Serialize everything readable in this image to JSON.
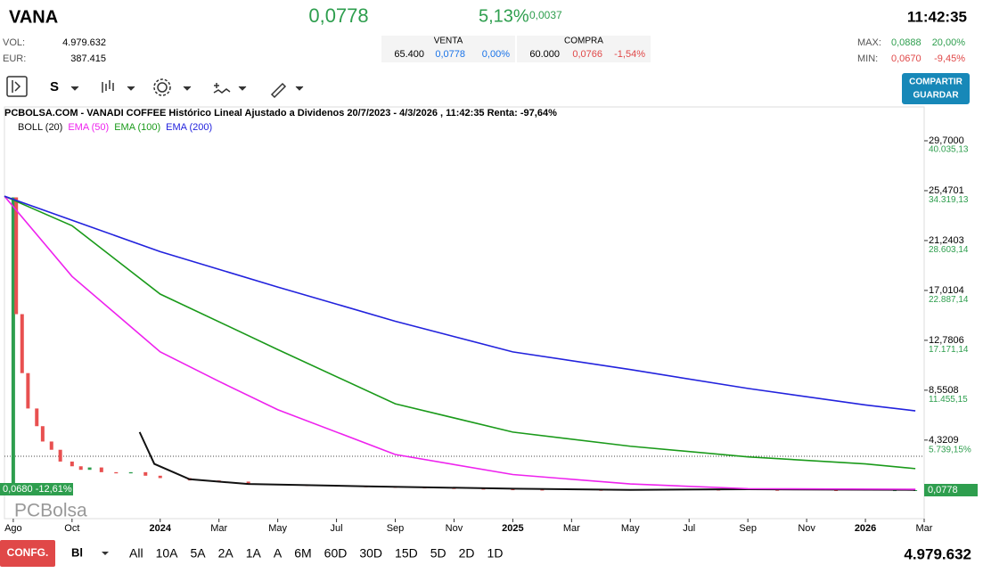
{
  "header": {
    "ticker": "VANA",
    "price": "0,0778",
    "change_pct": "5,13%",
    "change": "0,0037",
    "time": "11:42:35"
  },
  "stats": {
    "vol_label": "VOL:",
    "vol": "4.979.632",
    "eur_label": "EUR:",
    "eur": "387.415",
    "max_label": "MAX:",
    "max": "0,0888",
    "max_pct": "20,00%",
    "min_label": "MIN:",
    "min": "0,0670",
    "min_pct": "-9,45%"
  },
  "book": {
    "venta": {
      "label": "VENTA",
      "qty": "65.400",
      "price": "0,0778",
      "pct": "0,00%"
    },
    "compra": {
      "label": "COMPRA",
      "qty": "60.000",
      "price": "0,0766",
      "pct": "-1,54%"
    }
  },
  "toolbar": {
    "period": "S",
    "share": "COMPARTIR",
    "save": "GUARDAR"
  },
  "chart_data": {
    "type": "line",
    "title": "PCBOLSA.COM - VANADI COFFEE Histórico Lineal Ajustado a Dividenos 20/7/2023 - 4/3/2026 , 11:42:35 Renta: -97,64%",
    "watermark": "PCBolsa",
    "last_label": "0,0778",
    "low_label": "0,0680 -12,61%",
    "xlim": [
      -0.3,
      31
    ],
    "ylim": [
      -2.34,
      32.57
    ],
    "y2lim": [
      -3254,
      43804
    ],
    "xticks": [
      {
        "value": 0,
        "label": "Ago"
      },
      {
        "value": 2,
        "label": "Oct"
      },
      {
        "value": 5,
        "label": "2024"
      },
      {
        "value": 7,
        "label": "Mar"
      },
      {
        "value": 9,
        "label": "May"
      },
      {
        "value": 11,
        "label": "Jul"
      },
      {
        "value": 13,
        "label": "Sep"
      },
      {
        "value": 15,
        "label": "Nov"
      },
      {
        "value": 17,
        "label": "2025"
      },
      {
        "value": 19,
        "label": "Mar"
      },
      {
        "value": 21,
        "label": "May"
      },
      {
        "value": 23,
        "label": "Jul"
      },
      {
        "value": 25,
        "label": "Sep"
      },
      {
        "value": 27,
        "label": "Nov"
      },
      {
        "value": 29,
        "label": "2026"
      },
      {
        "value": 31,
        "label": "Mar"
      }
    ],
    "yticks": [
      {
        "value": 29.7,
        "label": "29,7000"
      },
      {
        "value": 25.4701,
        "label": "25,4701"
      },
      {
        "value": 21.2403,
        "label": "21,2403"
      },
      {
        "value": 17.0104,
        "label": "17,0104"
      },
      {
        "value": 12.7806,
        "label": "12,7806"
      },
      {
        "value": 8.5508,
        "label": "8,5508"
      },
      {
        "value": 4.3209,
        "label": "4,3209"
      }
    ],
    "y2ticks": [
      {
        "value": 40035.13,
        "label": "40.035,13"
      },
      {
        "value": 34319.13,
        "label": "34.319,13"
      },
      {
        "value": 28603.14,
        "label": "28.603,14"
      },
      {
        "value": 22887.14,
        "label": "22.887,14"
      },
      {
        "value": 17171.14,
        "label": "17.171,14"
      },
      {
        "value": 11455.15,
        "label": "11.455,15"
      },
      {
        "value": 5739.15,
        "label": "5.739,15%"
      }
    ],
    "series": [
      {
        "name": "BOLL (20)",
        "color": "#111111",
        "x": [
          4.3,
          4.8,
          6,
          8,
          12,
          17,
          21,
          25,
          30.7
        ],
        "values": [
          5.0,
          2.3,
          1.0,
          0.6,
          0.4,
          0.2,
          0.1,
          0.15,
          0.1
        ]
      },
      {
        "name": "EMA (50)",
        "color": "#ee22ee",
        "x": [
          -0.3,
          2,
          5,
          7,
          9,
          13,
          17,
          21,
          25,
          30.7
        ],
        "values": [
          25.0,
          18.2,
          11.8,
          9.3,
          6.9,
          3.1,
          1.4,
          0.6,
          0.2,
          0.15
        ]
      },
      {
        "name": "EMA (100)",
        "color": "#1a9a1a",
        "x": [
          -0.3,
          2,
          5,
          9,
          13,
          17,
          21,
          25,
          29,
          30.7
        ],
        "values": [
          25.0,
          22.5,
          16.7,
          12.0,
          7.4,
          5.0,
          3.8,
          2.9,
          2.3,
          1.9
        ]
      },
      {
        "name": "EMA (200)",
        "color": "#2222dd",
        "x": [
          -0.3,
          5,
          9,
          13,
          17,
          21,
          25,
          29,
          30.7
        ],
        "values": [
          25.0,
          20.3,
          17.3,
          14.4,
          11.8,
          10.3,
          8.7,
          7.3,
          6.8
        ]
      }
    ],
    "candles": {
      "up_color": "#2e9e4e",
      "down_color": "#e85050",
      "x": [
        0,
        0.1,
        0.3,
        0.5,
        0.8,
        1.0,
        1.3,
        1.6,
        2.0,
        2.3,
        2.6,
        3.0,
        3.5,
        4.0,
        4.5,
        5,
        6,
        7,
        8,
        9,
        10,
        11,
        12,
        13,
        14,
        15,
        16,
        17,
        18,
        20,
        22,
        24,
        26,
        28,
        30,
        30.7
      ],
      "values": [
        24.9,
        15,
        10,
        7,
        5.5,
        4.2,
        3.5,
        2.5,
        2.1,
        1.8,
        2.0,
        1.6,
        1.5,
        1.6,
        1.3,
        1.1,
        0.9,
        0.8,
        0.6,
        0.5,
        0.45,
        0.4,
        0.35,
        0.3,
        0.25,
        0.2,
        0.15,
        0.12,
        0.1,
        0.09,
        0.12,
        0.1,
        0.08,
        0.07,
        0.074,
        0.0778
      ]
    }
  },
  "footer": {
    "config": "CONFG.",
    "mode": "Bl",
    "ranges": [
      "All",
      "10A",
      "5A",
      "2A",
      "1A",
      "A",
      "6M",
      "60D",
      "30D",
      "15D",
      "5D",
      "2D",
      "1D"
    ],
    "volume": "4.979.632"
  }
}
